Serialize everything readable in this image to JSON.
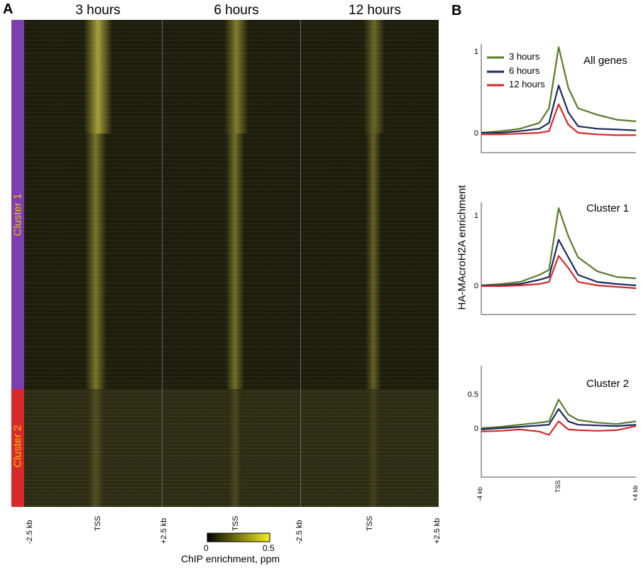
{
  "panel_a": {
    "letter": "A",
    "columns": [
      "3 hours",
      "6 hours",
      "12 hours"
    ],
    "x_ticks": [
      "-2.5 kb",
      "TSS",
      "+2.5 kb"
    ],
    "clusters": [
      {
        "name": "Cluster 1",
        "color": "#7b3fb0"
      },
      {
        "name": "Cluster 2",
        "color": "#d62a2a"
      }
    ],
    "colorbar": {
      "label": "ChIP enrichment, ppm",
      "min": "0",
      "max": "0.5",
      "low_color": "#000000",
      "high_color": "#f5f01e"
    }
  },
  "panel_b": {
    "letter": "B",
    "ylabel": "HA-MAcroH2A enrichment",
    "x_ticks": [
      "-4 kb",
      "TSS",
      "+4 kb"
    ],
    "legend": [
      {
        "name": "3 hours",
        "color": "#5a7a2a"
      },
      {
        "name": "6 hours",
        "color": "#1a2a5a"
      },
      {
        "name": "12 hours",
        "color": "#d22a2a"
      }
    ]
  },
  "chart_data": [
    {
      "type": "line",
      "title": "All genes",
      "x": [
        -4,
        -3,
        -2,
        -1,
        -0.5,
        0,
        0.5,
        1,
        2,
        3,
        4
      ],
      "ylim": [
        -0.2,
        1.2
      ],
      "yticks": [
        "0",
        "1"
      ],
      "series": [
        {
          "name": "3 hours",
          "values": [
            0.0,
            0.02,
            0.05,
            0.12,
            0.3,
            1.05,
            0.55,
            0.3,
            0.22,
            0.16,
            0.14
          ]
        },
        {
          "name": "6 hours",
          "values": [
            0.0,
            0.0,
            0.02,
            0.05,
            0.12,
            0.58,
            0.25,
            0.08,
            0.05,
            0.04,
            0.03
          ]
        },
        {
          "name": "12 hours",
          "values": [
            -0.02,
            -0.02,
            -0.01,
            0.0,
            0.02,
            0.35,
            0.1,
            0.0,
            -0.02,
            -0.03,
            -0.03
          ]
        }
      ]
    },
    {
      "type": "line",
      "title": "Cluster 1",
      "x": [
        -4,
        -3,
        -2,
        -1,
        -0.5,
        0,
        0.5,
        1,
        2,
        3,
        4
      ],
      "ylim": [
        -0.3,
        1.4
      ],
      "yticks": [
        "0",
        "1"
      ],
      "series": [
        {
          "name": "3 hours",
          "values": [
            0.0,
            0.02,
            0.05,
            0.15,
            0.22,
            1.1,
            0.7,
            0.4,
            0.2,
            0.12,
            0.1
          ]
        },
        {
          "name": "6 hours",
          "values": [
            0.0,
            0.0,
            0.02,
            0.08,
            0.12,
            0.65,
            0.4,
            0.15,
            0.05,
            0.02,
            0.0
          ]
        },
        {
          "name": "12 hours",
          "values": [
            -0.01,
            -0.01,
            0.0,
            0.02,
            0.05,
            0.42,
            0.25,
            0.05,
            0.0,
            -0.02,
            -0.04
          ]
        }
      ]
    },
    {
      "type": "line",
      "title": "Cluster 2",
      "x": [
        -4,
        -3,
        -2,
        -1,
        -0.5,
        0,
        0.5,
        1,
        2,
        3,
        4
      ],
      "ylim": [
        -0.8,
        0.9
      ],
      "yticks": [
        "0.5",
        "0"
      ],
      "series": [
        {
          "name": "3 hours",
          "values": [
            0.0,
            0.02,
            0.05,
            0.08,
            0.1,
            0.42,
            0.2,
            0.12,
            0.08,
            0.06,
            0.1
          ]
        },
        {
          "name": "6 hours",
          "values": [
            -0.02,
            0.0,
            0.02,
            0.04,
            0.05,
            0.28,
            0.1,
            0.05,
            0.04,
            0.03,
            0.05
          ]
        },
        {
          "name": "12 hours",
          "values": [
            -0.05,
            -0.04,
            -0.02,
            -0.05,
            -0.1,
            0.1,
            -0.02,
            -0.03,
            -0.04,
            -0.03,
            0.03
          ]
        }
      ]
    }
  ]
}
